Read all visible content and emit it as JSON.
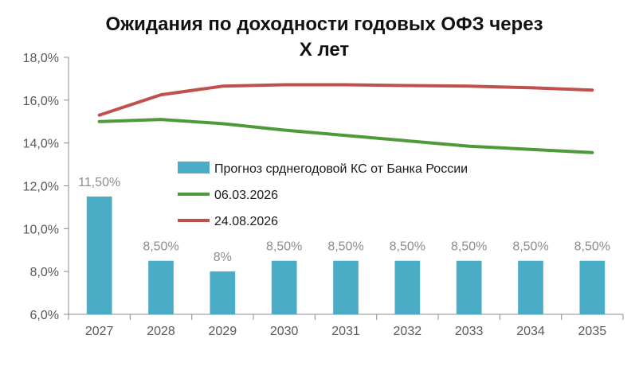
{
  "chart_data": {
    "type": "bar",
    "title_line1": "Ожидания по доходности годовых ОФЗ через",
    "title_line2": "X лет",
    "categories": [
      "2027",
      "2028",
      "2029",
      "2030",
      "2031",
      "2032",
      "2033",
      "2034",
      "2035"
    ],
    "ylim": [
      6.0,
      18.0
    ],
    "yticks": [
      6,
      8,
      10,
      12,
      14,
      16,
      18
    ],
    "ytick_labels": [
      "6,0%",
      "8,0%",
      "10,0%",
      "12,0%",
      "14,0%",
      "16,0%",
      "18,0%"
    ],
    "grid": false,
    "legend_position": "center",
    "series": [
      {
        "name": "Прогноз срднегодовой КС от Банка России",
        "kind": "bar",
        "color": "#4bacc6",
        "values": [
          11.5,
          8.5,
          8.0,
          8.5,
          8.5,
          8.5,
          8.5,
          8.5,
          8.5
        ],
        "data_labels": [
          "11,50%",
          "8,50%",
          "8%",
          "8,50%",
          "8,50%",
          "8,50%",
          "8,50%",
          "8,50%",
          "8,50%"
        ]
      },
      {
        "name": "06.03.2026",
        "kind": "line",
        "color": "#4e9a3a",
        "values": [
          15.0,
          15.1,
          14.9,
          14.6,
          14.35,
          14.1,
          13.85,
          13.7,
          13.55
        ]
      },
      {
        "name": "24.08.2026",
        "kind": "line",
        "color": "#c0504d",
        "values": [
          15.3,
          16.25,
          16.65,
          16.72,
          16.72,
          16.68,
          16.65,
          16.58,
          16.47
        ]
      }
    ]
  }
}
